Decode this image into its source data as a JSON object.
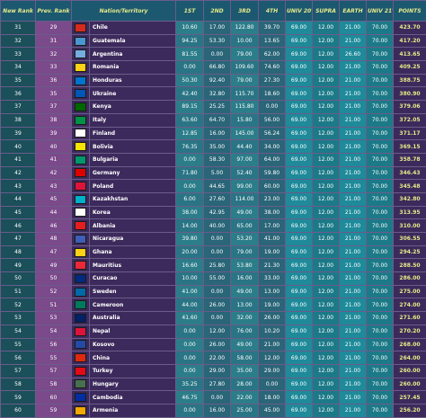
{
  "headers": [
    "New Rank",
    "Prev. Rank",
    "Nation/Territory",
    "1ST",
    "2ND",
    "3RD",
    "4TH",
    "UNIV 20'",
    "SUPRA",
    "EARTH",
    "UNIV 21'",
    "POINTS"
  ],
  "rows": [
    {
      "rank": "31",
      "prev": "29",
      "nation": "Chile",
      "v1": "10.60",
      "v2": "17.00",
      "v3": "122.80",
      "v4": "39.70",
      "u20": "69.00",
      "sup": "12.00",
      "ear": "21.00",
      "u21": "70.00",
      "pts": "423.70",
      "flag": "#d52b1e"
    },
    {
      "rank": "32",
      "prev": "31",
      "nation": "Guatemala",
      "v1": "94.25",
      "v2": "53.30",
      "v3": "10.00",
      "v4": "13.65",
      "u20": "69.00",
      "sup": "12.00",
      "ear": "21.00",
      "u21": "70.00",
      "pts": "417.20",
      "flag": "#4997d0"
    },
    {
      "rank": "33",
      "prev": "32",
      "nation": "Argentina",
      "v1": "81.55",
      "v2": "0.00",
      "v3": "79.00",
      "v4": "62.00",
      "u20": "69.00",
      "sup": "12.00",
      "ear": "26.60",
      "u21": "70.00",
      "pts": "413.65",
      "flag": "#74acdf"
    },
    {
      "rank": "34",
      "prev": "33",
      "nation": "Romania",
      "v1": "0.00",
      "v2": "66.80",
      "v3": "109.60",
      "v4": "74.60",
      "u20": "69.00",
      "sup": "12.00",
      "ear": "21.00",
      "u21": "70.00",
      "pts": "409.25",
      "flag": "#fcd116"
    },
    {
      "rank": "35",
      "prev": "36",
      "nation": "Honduras",
      "v1": "50.30",
      "v2": "92.40",
      "v3": "79.00",
      "v4": "27.30",
      "u20": "69.00",
      "sup": "12.00",
      "ear": "21.00",
      "u21": "70.00",
      "pts": "388.75",
      "flag": "#0073cf"
    },
    {
      "rank": "36",
      "prev": "35",
      "nation": "Ukraine",
      "v1": "42.40",
      "v2": "32.80",
      "v3": "115.70",
      "v4": "18.60",
      "u20": "69.00",
      "sup": "12.00",
      "ear": "21.00",
      "u21": "70.00",
      "pts": "380.90",
      "flag": "#0057b7"
    },
    {
      "rank": "37",
      "prev": "37",
      "nation": "Kenya",
      "v1": "89.15",
      "v2": "25.25",
      "v3": "115.80",
      "v4": "0.00",
      "u20": "69.00",
      "sup": "12.00",
      "ear": "21.00",
      "u21": "70.00",
      "pts": "379.06",
      "flag": "#006600"
    },
    {
      "rank": "38",
      "prev": "38",
      "nation": "Italy",
      "v1": "63.60",
      "v2": "64.70",
      "v3": "15.80",
      "v4": "56.00",
      "u20": "69.00",
      "sup": "12.00",
      "ear": "21.00",
      "u21": "70.00",
      "pts": "372.05",
      "flag": "#009246"
    },
    {
      "rank": "39",
      "prev": "39",
      "nation": "Finland",
      "v1": "12.85",
      "v2": "16.00",
      "v3": "145.00",
      "v4": "56.24",
      "u20": "69.00",
      "sup": "12.00",
      "ear": "21.00",
      "u21": "70.00",
      "pts": "371.17",
      "flag": "#ffffff"
    },
    {
      "rank": "40",
      "prev": "40",
      "nation": "Bolivia",
      "v1": "76.35",
      "v2": "35.00",
      "v3": "44.40",
      "v4": "34.00",
      "u20": "69.00",
      "sup": "12.00",
      "ear": "21.00",
      "u21": "70.00",
      "pts": "369.15",
      "flag": "#f4e400"
    },
    {
      "rank": "41",
      "prev": "41",
      "nation": "Bulgaria",
      "v1": "0.00",
      "v2": "58.30",
      "v3": "97.00",
      "v4": "64.00",
      "u20": "69.00",
      "sup": "12.00",
      "ear": "21.00",
      "u21": "70.00",
      "pts": "358.78",
      "flag": "#00966e"
    },
    {
      "rank": "42",
      "prev": "42",
      "nation": "Germany",
      "v1": "71.80",
      "v2": "5.00",
      "v3": "52.40",
      "v4": "59.80",
      "u20": "69.00",
      "sup": "12.00",
      "ear": "21.00",
      "u21": "70.00",
      "pts": "346.43",
      "flag": "#dd0000"
    },
    {
      "rank": "43",
      "prev": "43",
      "nation": "Poland",
      "v1": "0.00",
      "v2": "44.65",
      "v3": "99.00",
      "v4": "60.00",
      "u20": "69.00",
      "sup": "12.00",
      "ear": "21.00",
      "u21": "70.00",
      "pts": "345.48",
      "flag": "#dc143c"
    },
    {
      "rank": "44",
      "prev": "45",
      "nation": "Kazakhstan",
      "v1": "6.00",
      "v2": "27.60",
      "v3": "114.00",
      "v4": "23.00",
      "u20": "69.00",
      "sup": "12.00",
      "ear": "21.00",
      "u21": "70.00",
      "pts": "342.80",
      "flag": "#00afca"
    },
    {
      "rank": "45",
      "prev": "44",
      "nation": "Korea",
      "v1": "38.00",
      "v2": "42.95",
      "v3": "49.00",
      "v4": "38.00",
      "u20": "69.00",
      "sup": "12.00",
      "ear": "21.00",
      "u21": "70.00",
      "pts": "313.95",
      "flag": "#ffffff"
    },
    {
      "rank": "46",
      "prev": "46",
      "nation": "Albania",
      "v1": "14.00",
      "v2": "40.00",
      "v3": "65.00",
      "v4": "17.00",
      "u20": "69.00",
      "sup": "12.00",
      "ear": "21.00",
      "u21": "70.00",
      "pts": "310.00",
      "flag": "#e41e20"
    },
    {
      "rank": "47",
      "prev": "48",
      "nation": "Nicaragua",
      "v1": "39.80",
      "v2": "0.00",
      "v3": "53.20",
      "v4": "41.00",
      "u20": "69.00",
      "sup": "12.00",
      "ear": "21.00",
      "u21": "70.00",
      "pts": "306.55",
      "flag": "#3e5eb9"
    },
    {
      "rank": "48",
      "prev": "47",
      "nation": "Ghana",
      "v1": "20.00",
      "v2": "0.00",
      "v3": "79.00",
      "v4": "19.00",
      "u20": "69.00",
      "sup": "12.00",
      "ear": "21.00",
      "u21": "70.00",
      "pts": "294.25",
      "flag": "#fcd116"
    },
    {
      "rank": "49",
      "prev": "49",
      "nation": "Mauritius",
      "v1": "16.60",
      "v2": "25.80",
      "v3": "53.80",
      "v4": "21.30",
      "u20": "69.00",
      "sup": "12.00",
      "ear": "21.00",
      "u21": "70.00",
      "pts": "288.50",
      "flag": "#ea2839"
    },
    {
      "rank": "50",
      "prev": "50",
      "nation": "Curacao",
      "v1": "10.00",
      "v2": "55.00",
      "v3": "16.00",
      "v4": "33.00",
      "u20": "69.00",
      "sup": "12.00",
      "ear": "21.00",
      "u21": "70.00",
      "pts": "286.00",
      "flag": "#002b7f"
    },
    {
      "rank": "51",
      "prev": "52",
      "nation": "Sweden",
      "v1": "41.00",
      "v2": "0.00",
      "v3": "49.00",
      "v4": "13.00",
      "u20": "69.00",
      "sup": "12.00",
      "ear": "21.00",
      "u21": "70.00",
      "pts": "275.00",
      "flag": "#006aa7"
    },
    {
      "rank": "52",
      "prev": "51",
      "nation": "Cameroon",
      "v1": "44.00",
      "v2": "26.00",
      "v3": "13.00",
      "v4": "19.00",
      "u20": "69.00",
      "sup": "12.00",
      "ear": "21.00",
      "u21": "70.00",
      "pts": "274.00",
      "flag": "#007a5e"
    },
    {
      "rank": "53",
      "prev": "53",
      "nation": "Australia",
      "v1": "41.60",
      "v2": "0.00",
      "v3": "32.00",
      "v4": "26.00",
      "u20": "69.00",
      "sup": "12.00",
      "ear": "21.00",
      "u21": "70.00",
      "pts": "271.60",
      "flag": "#012169"
    },
    {
      "rank": "54",
      "prev": "54",
      "nation": "Nepal",
      "v1": "0.00",
      "v2": "12.00",
      "v3": "76.00",
      "v4": "10.20",
      "u20": "69.00",
      "sup": "12.00",
      "ear": "21.00",
      "u21": "70.00",
      "pts": "270.20",
      "flag": "#dc143c"
    },
    {
      "rank": "55",
      "prev": "56",
      "nation": "Kosovo",
      "v1": "0.00",
      "v2": "26.00",
      "v3": "49.00",
      "v4": "21.00",
      "u20": "69.00",
      "sup": "12.00",
      "ear": "21.00",
      "u21": "70.00",
      "pts": "268.00",
      "flag": "#244aa5"
    },
    {
      "rank": "56",
      "prev": "55",
      "nation": "China",
      "v1": "0.00",
      "v2": "22.00",
      "v3": "58.00",
      "v4": "12.00",
      "u20": "69.00",
      "sup": "12.00",
      "ear": "21.00",
      "u21": "70.00",
      "pts": "264.00",
      "flag": "#de2910"
    },
    {
      "rank": "57",
      "prev": "57",
      "nation": "Turkey",
      "v1": "0.00",
      "v2": "29.00",
      "v3": "35.00",
      "v4": "29.00",
      "u20": "69.00",
      "sup": "12.00",
      "ear": "21.00",
      "u21": "70.00",
      "pts": "260.00",
      "flag": "#e30a17"
    },
    {
      "rank": "58",
      "prev": "58",
      "nation": "Hungary",
      "v1": "35.25",
      "v2": "27.80",
      "v3": "28.00",
      "v4": "0.00",
      "u20": "69.00",
      "sup": "12.00",
      "ear": "21.00",
      "u21": "70.00",
      "pts": "260.00",
      "flag": "#477050"
    },
    {
      "rank": "59",
      "prev": "60",
      "nation": "Cambodia",
      "v1": "46.75",
      "v2": "0.00",
      "v3": "22.00",
      "v4": "18.00",
      "u20": "69.00",
      "sup": "12.00",
      "ear": "21.00",
      "u21": "70.00",
      "pts": "257.45",
      "flag": "#032ea1"
    },
    {
      "rank": "60",
      "prev": "59",
      "nation": "Armenia",
      "v1": "0.00",
      "v2": "16.00",
      "v3": "25.00",
      "v4": "45.00",
      "u20": "69.00",
      "sup": "12.00",
      "ear": "21.00",
      "u21": "70.00",
      "pts": "256.20",
      "flag": "#f2a800"
    }
  ]
}
